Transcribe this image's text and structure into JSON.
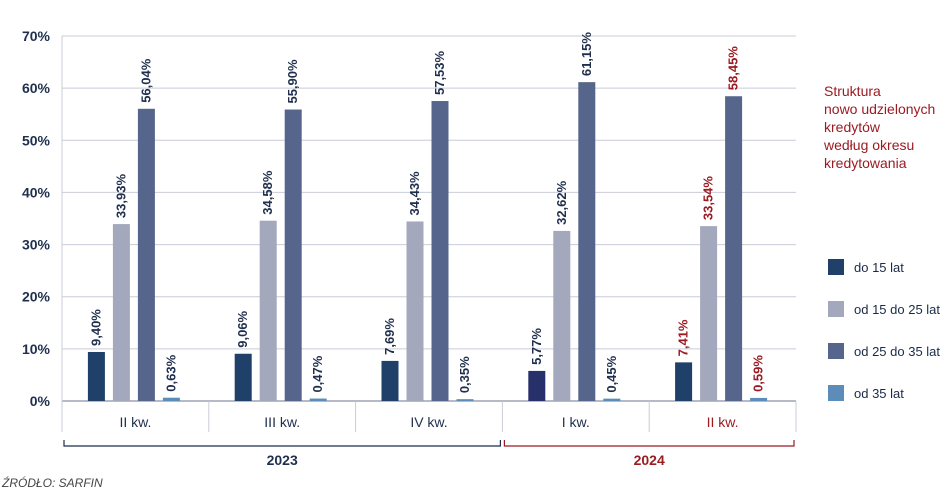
{
  "chart_data": {
    "type": "bar",
    "title": "Struktura nowo udzielonych kredytów według okresu kredytowania",
    "title_lines": [
      "Struktura",
      "nowo udzielonych",
      "kredytów",
      "według okresu",
      "kredytowania"
    ],
    "categories": [
      "II kw.",
      "III kw.",
      "IV kw.",
      "I kw.",
      "II kw."
    ],
    "years": [
      {
        "label": "2023",
        "span": [
          0,
          2
        ],
        "color": "#1f2f4d"
      },
      {
        "label": "2024",
        "span": [
          3,
          4
        ],
        "color": "#9b1b22"
      }
    ],
    "highlight_category_index": 4,
    "highlight_color": "#9b1b22",
    "ylim": [
      0,
      70
    ],
    "yticks": [
      "0%",
      "10%",
      "20%",
      "30%",
      "40%",
      "50%",
      "60%",
      "70%"
    ],
    "series": [
      {
        "name": "do 15 lat",
        "color": "#1f4068",
        "values": [
          9.4,
          9.06,
          7.69,
          5.77,
          7.41
        ],
        "labels": [
          "9,40%",
          "9,06%",
          "7,69%",
          "5,77%",
          "7,41%"
        ]
      },
      {
        "name": "od 15 do 25 lat",
        "color": "#a3a8bc",
        "values": [
          33.93,
          34.58,
          34.43,
          32.62,
          33.54
        ],
        "labels": [
          "33,93%",
          "34,58%",
          "34,43%",
          "32,62%",
          "33,54%"
        ]
      },
      {
        "name": "od 25 do 35 lat",
        "color": "#56658b",
        "values": [
          56.04,
          55.9,
          57.53,
          61.15,
          58.45
        ],
        "labels": [
          "56,04%",
          "55,90%",
          "57,53%",
          "61,15%",
          "58,45%"
        ]
      },
      {
        "name": "od 35 lat",
        "color": "#5b8db8",
        "values": [
          0.63,
          0.47,
          0.35,
          0.45,
          0.59
        ],
        "labels": [
          "0,63%",
          "0,47%",
          "0,35%",
          "0,45%",
          "0,59%"
        ]
      }
    ],
    "bar_color_overrides": [
      {
        "series": 0,
        "index": 3,
        "color": "#27306b"
      }
    ],
    "grid": true,
    "legend_position": "right"
  },
  "source": "ŹRÓDŁO: SARFIN"
}
